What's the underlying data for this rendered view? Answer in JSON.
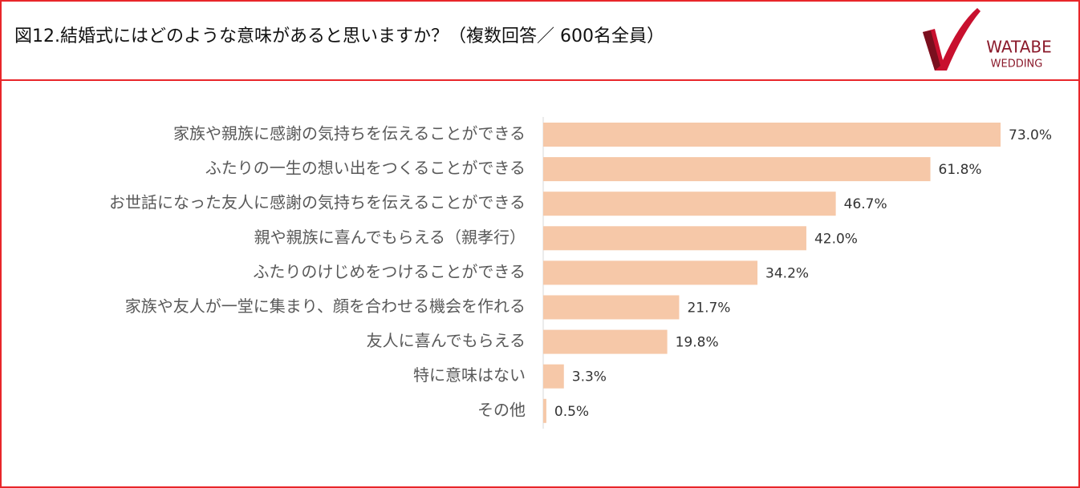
{
  "chart_data": {
    "type": "barh",
    "title": "図12.結婚式にはどのような意味があると思いますか？（複数回答／ 600名全員）",
    "categories": [
      "家族や親族に感謝の気持ちを伝えることができる",
      "ふたりの一生の想い出をつくることができる",
      "お世話になった友人に感謝の気持ちを伝えることができる",
      "親や親族に喜んでもらえる（親孝行）",
      "ふたりのけじめをつけることができる",
      "家族や友人が一堂に集まり、顔を合わせる機会を作れる",
      "友人に喜んでもらえる",
      "特に意味はない",
      "その他"
    ],
    "values": [
      73.0,
      61.8,
      46.7,
      42.0,
      34.2,
      21.7,
      19.8,
      3.3,
      0.5
    ],
    "value_labels": [
      "73.0%",
      "61.8%",
      "46.7%",
      "42.0%",
      "34.2%",
      "21.7%",
      "19.8%",
      "3.3%",
      "0.5%"
    ],
    "color": "#f6c8a8"
  },
  "logo": {
    "line1": "WATABE",
    "line2": "WEDDING"
  }
}
